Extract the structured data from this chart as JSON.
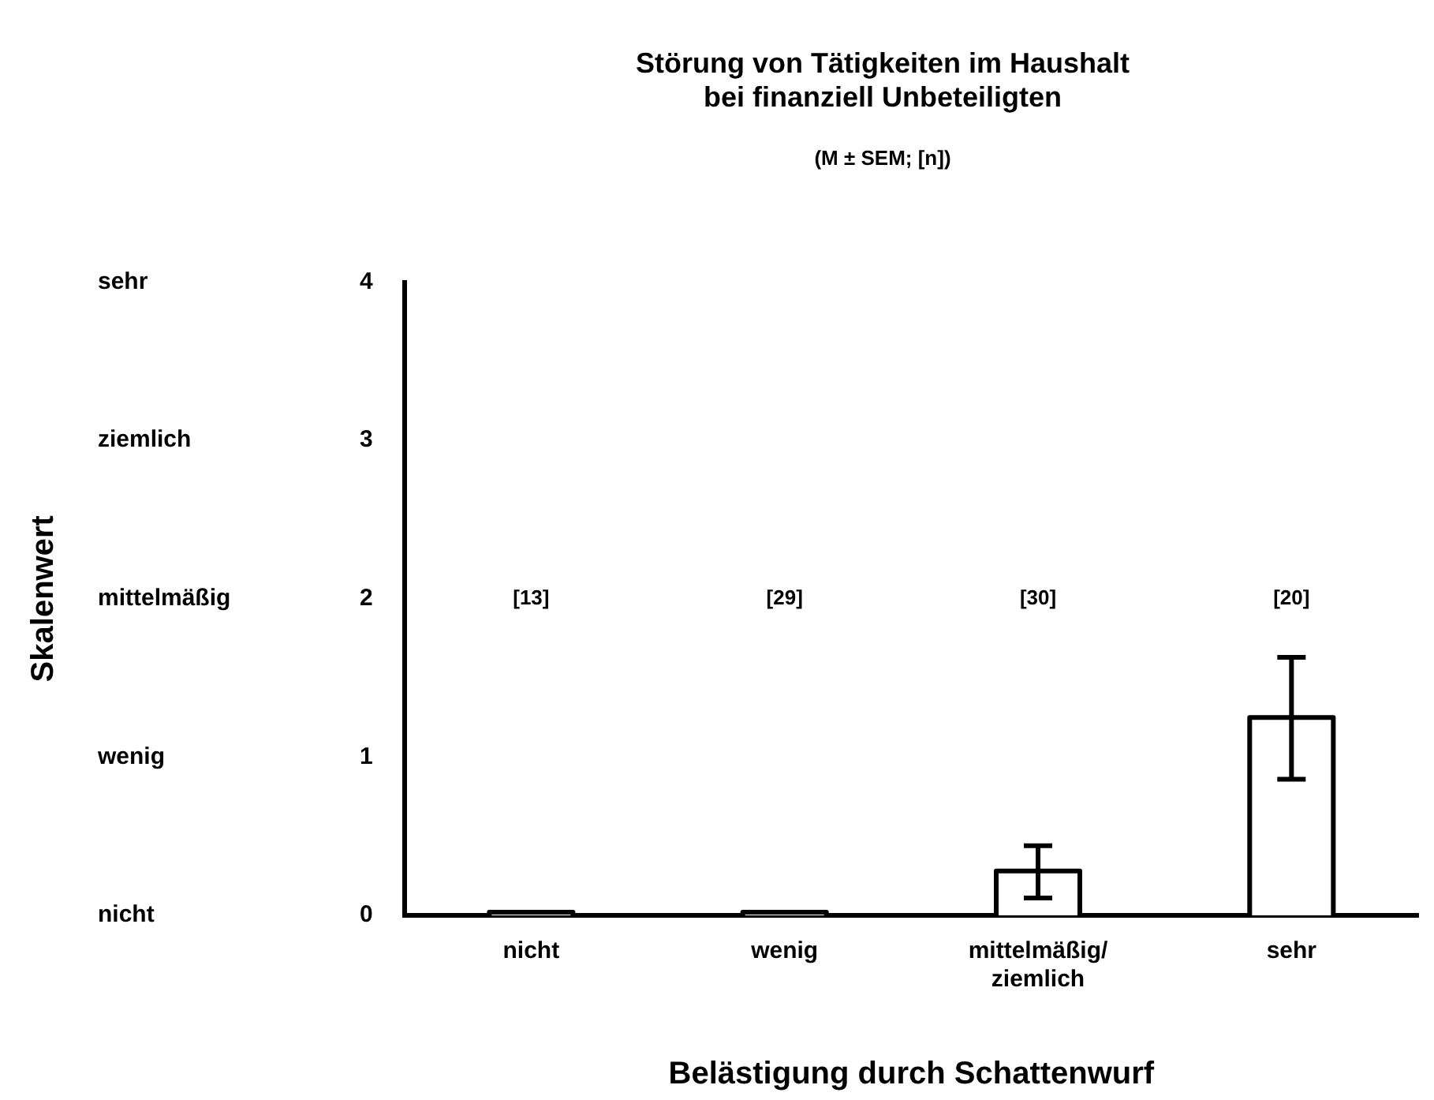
{
  "chart_data": {
    "type": "bar",
    "title": [
      "Störung von Tätigkeiten im Haushalt",
      "bei finanziell Unbeteiligten"
    ],
    "subtitle": "(M ± SEM; [n])",
    "xlabel": "Belästigung durch Schattenwurf",
    "categories": [
      "nicht",
      "wenig",
      "mittelmäßig/\nziemlich",
      "sehr"
    ],
    "values": [
      0.02,
      0.02,
      0.28,
      1.25
    ],
    "color": "#ffffff",
    "errors": [
      null,
      null,
      [
        0.11,
        0.44
      ],
      [
        0.86,
        1.63
      ]
    ],
    "ylim": [
      0,
      4
    ],
    "yticks": [
      0,
      1,
      2,
      3,
      4
    ],
    "annotations": [
      "[13]",
      "[29]",
      "[30]",
      "[20]",
      "nicht",
      "wenig",
      "mittelmäßig",
      "ziemlich",
      "sehr",
      "Skalenwert"
    ],
    "legend": false
  }
}
